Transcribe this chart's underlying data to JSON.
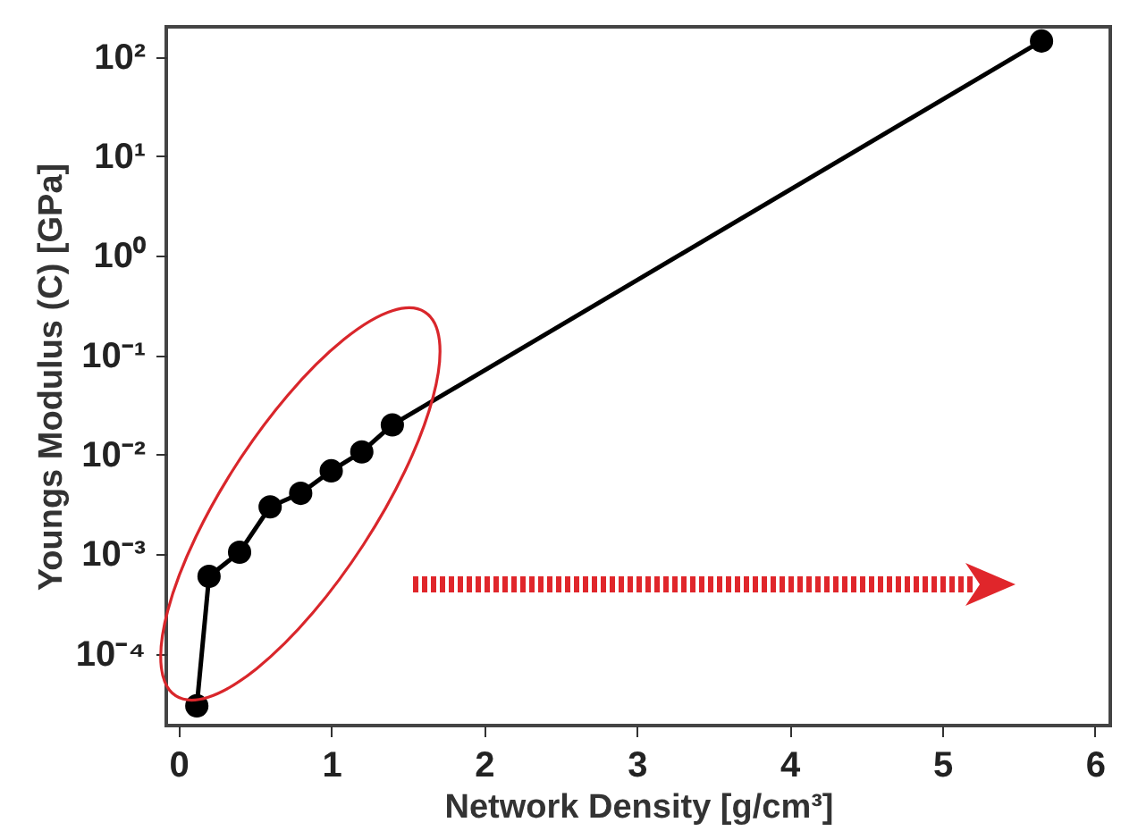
{
  "chart_data": {
    "type": "line",
    "xlabel": "Network Density [g/cm³]",
    "ylabel": "Youngs Modulus (C) [GPa]",
    "x": [
      0.12,
      0.2,
      0.4,
      0.6,
      0.8,
      1.0,
      1.2,
      1.4,
      5.65
    ],
    "series": [
      {
        "color": "#000000",
        "values": [
          3e-05,
          0.0006,
          0.00105,
          0.003,
          0.0041,
          0.0069,
          0.0107,
          0.02,
          144
        ]
      }
    ],
    "xlim": [
      -0.08,
      6.1
    ],
    "xticks": [
      0,
      1,
      2,
      3,
      4,
      5,
      6
    ],
    "ylim": [
      1.9e-05,
      200
    ],
    "yticks": [
      {
        "value": 0.0001,
        "label": "10⁻⁴"
      },
      {
        "value": 0.001,
        "label": "10⁻³"
      },
      {
        "value": 0.01,
        "label": "10⁻²"
      },
      {
        "value": 0.1,
        "label": "10⁻¹"
      },
      {
        "value": 1,
        "label": "10⁰"
      },
      {
        "value": 10,
        "label": "10¹"
      },
      {
        "value": 100,
        "label": "10²"
      }
    ],
    "log": "y",
    "marker": "circle",
    "line_style": "solid",
    "grid": false
  }
}
